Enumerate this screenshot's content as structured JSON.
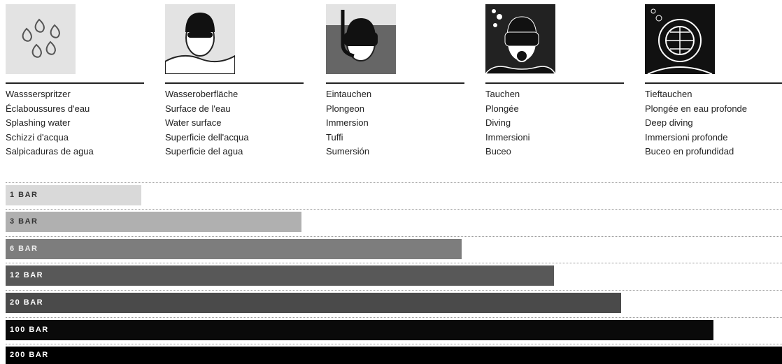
{
  "columns": [
    {
      "lines": [
        "Wassserspritzer",
        "Éclaboussures d'eau",
        "Splashing water",
        "Schizzi d'acqua",
        "Salpicaduras de agua"
      ]
    },
    {
      "lines": [
        "Wasseroberfläche",
        "Surface de l'eau",
        "Water surface",
        "Superficie dell'acqua",
        "Superficie del agua"
      ]
    },
    {
      "lines": [
        "Eintauchen",
        "Plongeon",
        "Immersion",
        "Tuffi",
        "Sumersión"
      ]
    },
    {
      "lines": [
        "Tauchen",
        "Plongée",
        "Diving",
        "Immersioni",
        "Buceo"
      ]
    },
    {
      "lines": [
        "Tieftauchen",
        "Plongée en eau profonde",
        "Deep diving",
        "Immersioni profonde",
        "Buceo en profundidad"
      ]
    }
  ],
  "bars": [
    "1 BAR",
    "3 BAR",
    "6 BAR",
    "12 BAR",
    "20 BAR",
    "100 BAR",
    "200 BAR"
  ]
}
